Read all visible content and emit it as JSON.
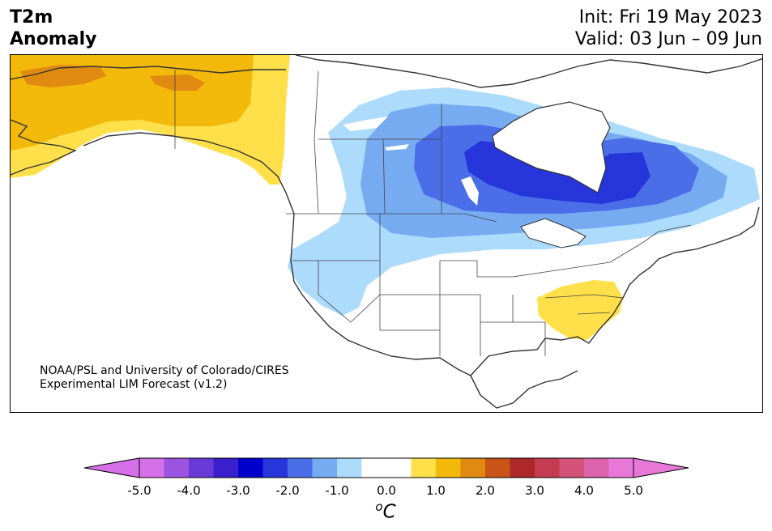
{
  "header": {
    "title_line1": "T2m",
    "title_line2": "Anomaly",
    "init": "Init: Fri 19 May 2023",
    "valid": "Valid: 03 Jun – 09 Jun"
  },
  "credit": {
    "line1": "NOAA/PSL and University of Colorado/CIRES",
    "line2": "Experimental LIM Forecast (v1.2)"
  },
  "colorbar": {
    "units_superscript": "o",
    "units_main": "C",
    "ticks": [
      "-5.0",
      "-4.0",
      "-3.0",
      "-2.0",
      "-1.0",
      "0.0",
      "1.0",
      "2.0",
      "3.0",
      "4.0",
      "5.0"
    ],
    "colors": [
      "#d670e8",
      "#9a54e0",
      "#6a3ad8",
      "#3a20cc",
      "#0000cc",
      "#2636da",
      "#4a6ee8",
      "#76abf2",
      "#acdbfc",
      "#ffffff",
      "#ffffff",
      "#ffe04a",
      "#f2b80a",
      "#e08a12",
      "#c85418",
      "#ae2828",
      "#c43c52",
      "#d2527a",
      "#dc64ac",
      "#e878d8"
    ],
    "under_color": "#d670e8",
    "over_color": "#e878d8"
  },
  "map": {
    "region": "North America",
    "variable": "2 m temperature anomaly"
  }
}
